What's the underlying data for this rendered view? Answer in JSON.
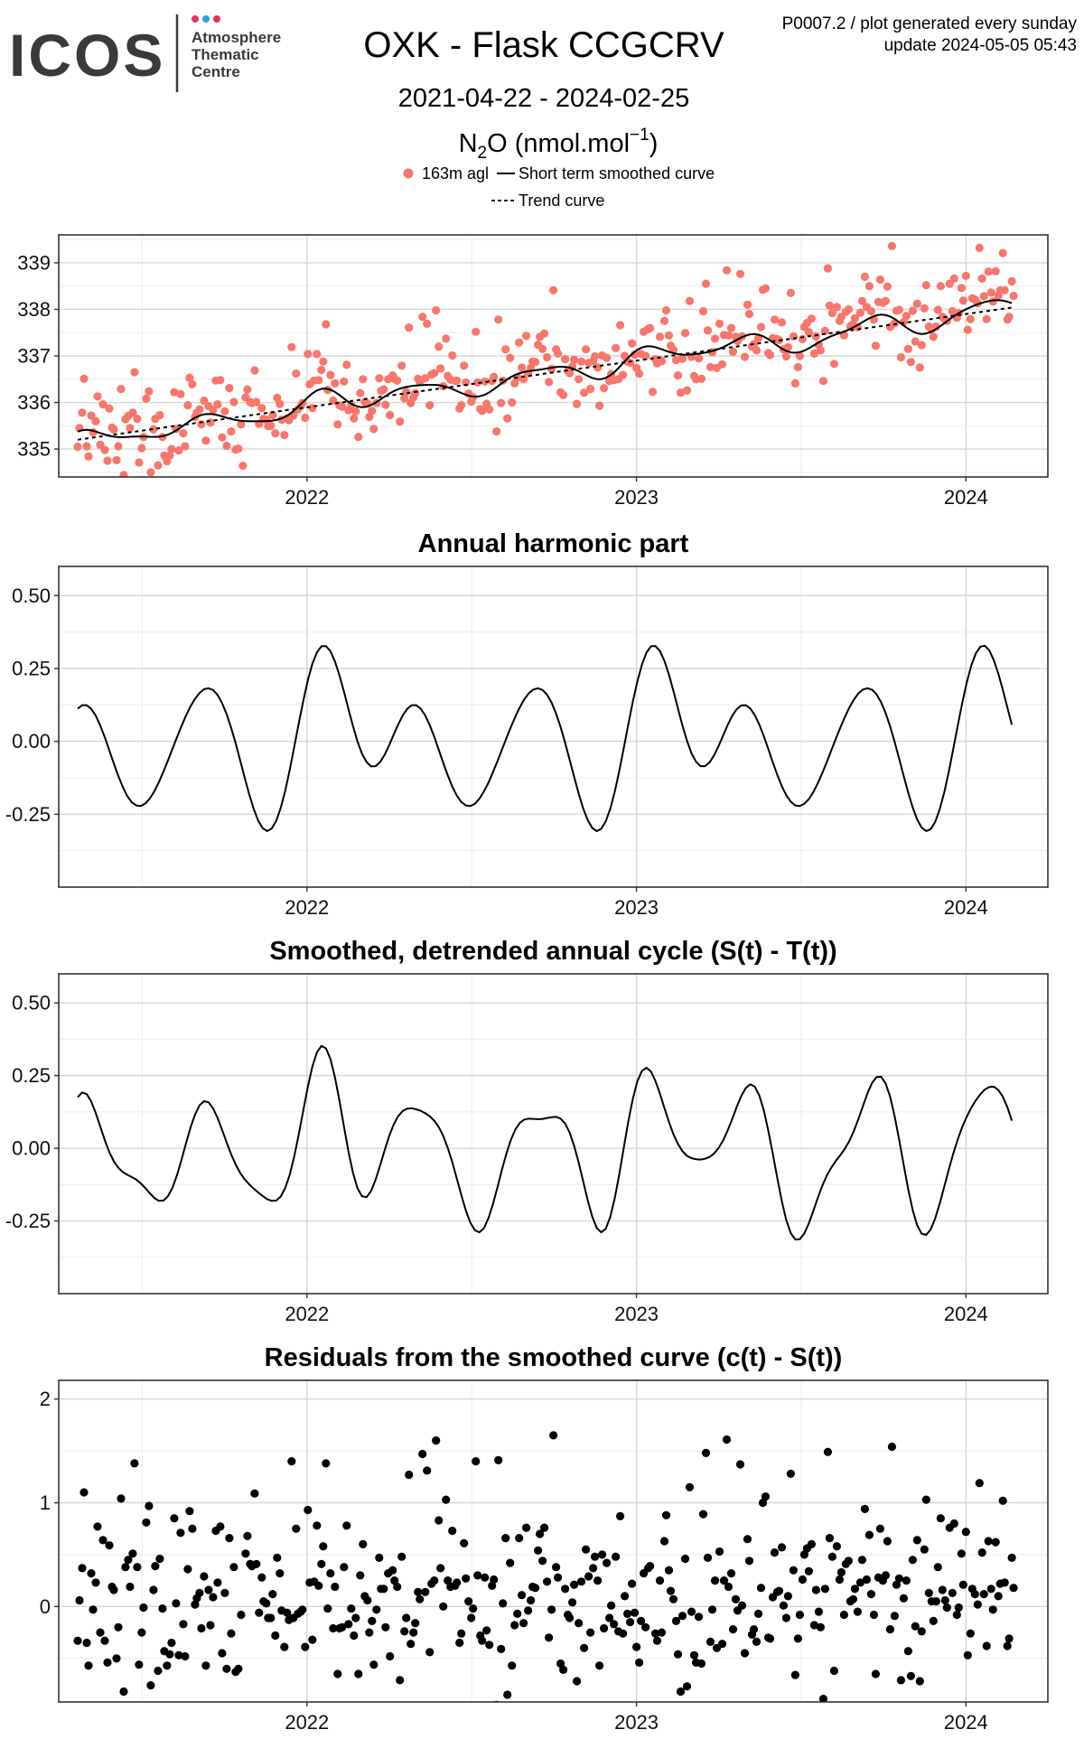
{
  "header": {
    "logo_text": "ICOS",
    "logo_sub": [
      "Atmosphere",
      "Thematic",
      "Centre"
    ],
    "title": "OXK - Flask CCGCRV",
    "date_range": "2021-04-22 - 2024-02-25",
    "info_line1": "P0007.2 / plot generated every sunday",
    "info_line2": "update  2024-05-05 05:43",
    "species_main": "N",
    "species_sub": "2",
    "species_rest": "O (nmol.mol",
    "species_sup": "−1",
    "species_close": ")"
  },
  "legend": {
    "points": "163m agl",
    "smoothed": "Short term smoothed curve",
    "trend": "Trend curve"
  },
  "colors": {
    "points": "#F8766D",
    "line": "#000000",
    "residual_points": "#000000"
  },
  "chart_data": [
    {
      "id": "main",
      "type": "scatter",
      "title": "",
      "xlabel": "",
      "ylabel": "",
      "xlim": [
        "2021-04-01",
        "2024-04-01"
      ],
      "x_ticks": [
        "2022",
        "2023",
        "2024"
      ],
      "ylim": [
        334.4,
        339.6
      ],
      "y_ticks": [
        335,
        336,
        337,
        338,
        339
      ],
      "y_ticklabels": [
        "335",
        "336",
        "337",
        "338",
        "339"
      ],
      "grid": true,
      "series": [
        {
          "name": "163m agl",
          "kind": "points",
          "x": [],
          "y": []
        },
        {
          "name": "Short term smoothed curve",
          "kind": "line",
          "x": [],
          "y": []
        },
        {
          "name": "Trend curve",
          "kind": "dashed",
          "x": [],
          "y": []
        }
      ]
    },
    {
      "id": "harmonic",
      "type": "line",
      "title": "Annual harmonic part",
      "xlabel": "",
      "ylabel": "",
      "xlim": [
        "2021-04-01",
        "2024-04-01"
      ],
      "x_ticks": [
        "2022",
        "2023",
        "2024"
      ],
      "ylim": [
        -0.5,
        0.6
      ],
      "y_ticks": [
        -0.25,
        0,
        0.25,
        0.5
      ],
      "y_ticklabels": [
        "-0.25",
        "0.00",
        "0.25",
        "0.50"
      ],
      "grid": true,
      "series": [
        {
          "kind": "line",
          "x": [],
          "y": []
        }
      ]
    },
    {
      "id": "detrended",
      "type": "line",
      "title": "Smoothed, detrended annual cycle (S(t) - T(t))",
      "xlabel": "",
      "ylabel": "",
      "xlim": [
        "2021-04-01",
        "2024-04-01"
      ],
      "x_ticks": [
        "2022",
        "2023",
        "2024"
      ],
      "ylim": [
        -0.5,
        0.6
      ],
      "y_ticks": [
        -0.25,
        0,
        0.25,
        0.5
      ],
      "y_ticklabels": [
        "-0.25",
        "0.00",
        "0.25",
        "0.50"
      ],
      "grid": true,
      "series": [
        {
          "kind": "line",
          "x": [],
          "y": []
        }
      ]
    },
    {
      "id": "residuals",
      "type": "scatter",
      "title": "Residuals from the smoothed curve (c(t) - S(t))",
      "xlabel": "",
      "ylabel": "",
      "xlim": [
        "2021-04-01",
        "2024-04-01"
      ],
      "x_ticks": [
        "2022",
        "2023",
        "2024"
      ],
      "ylim": [
        -0.92,
        2.18
      ],
      "y_ticks": [
        0,
        1,
        2
      ],
      "y_ticklabels": [
        "0",
        "1",
        "2"
      ],
      "grid": true,
      "series": [
        {
          "kind": "points",
          "x": [],
          "y": []
        }
      ]
    }
  ]
}
